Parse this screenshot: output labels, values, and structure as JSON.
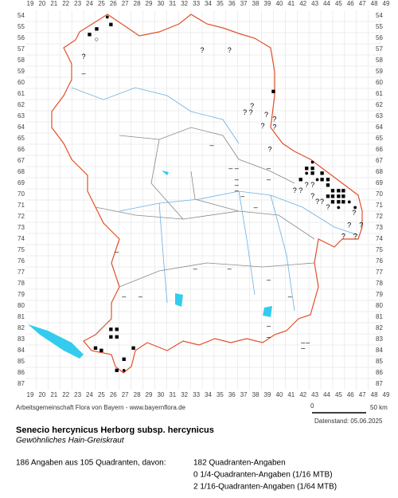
{
  "map": {
    "columns": [
      19,
      20,
      21,
      22,
      23,
      24,
      25,
      26,
      27,
      28,
      29,
      30,
      31,
      32,
      33,
      34,
      35,
      36,
      37,
      38,
      39,
      40,
      41,
      42,
      43,
      44,
      45,
      46,
      47,
      48,
      49
    ],
    "rows": [
      54,
      55,
      56,
      57,
      58,
      59,
      60,
      61,
      62,
      63,
      64,
      65,
      66,
      67,
      68,
      69,
      70,
      71,
      72,
      73,
      74,
      75,
      76,
      77,
      78,
      79,
      80,
      81,
      82,
      83,
      84,
      85,
      86,
      87
    ],
    "markers": [
      {
        "c": 25.5,
        "r": 54.1,
        "s": "●"
      },
      {
        "c": 25.8,
        "r": 54.8,
        "s": "■"
      },
      {
        "c": 24.6,
        "r": 55.2,
        "s": "■"
      },
      {
        "c": 24.0,
        "r": 55.7,
        "s": "■"
      },
      {
        "c": 24.6,
        "r": 56.1,
        "s": "○"
      },
      {
        "c": 23.5,
        "r": 57.7,
        "s": "?"
      },
      {
        "c": 23.5,
        "r": 59.2,
        "s": "–"
      },
      {
        "c": 39.5,
        "r": 60.8,
        "s": "■"
      },
      {
        "c": 33.5,
        "r": 57.1,
        "s": "?"
      },
      {
        "c": 35.8,
        "r": 57.1,
        "s": "?"
      },
      {
        "c": 37.7,
        "r": 62.1,
        "s": "?"
      },
      {
        "c": 37.1,
        "r": 62.7,
        "s": "?"
      },
      {
        "c": 37.6,
        "r": 62.7,
        "s": "?"
      },
      {
        "c": 38.9,
        "r": 62.9,
        "s": "?"
      },
      {
        "c": 39.6,
        "r": 63.3,
        "s": "?"
      },
      {
        "c": 38.6,
        "r": 63.9,
        "s": "?"
      },
      {
        "c": 39.6,
        "r": 64.0,
        "s": "?"
      },
      {
        "c": 39.2,
        "r": 66.0,
        "s": "?"
      },
      {
        "c": 34.3,
        "r": 65.6,
        "s": "–"
      },
      {
        "c": 42.8,
        "r": 67.1,
        "s": "●"
      },
      {
        "c": 42.3,
        "r": 67.7,
        "s": "■"
      },
      {
        "c": 42.8,
        "r": 67.7,
        "s": "■"
      },
      {
        "c": 42.3,
        "r": 68.1,
        "s": "●"
      },
      {
        "c": 42.8,
        "r": 68.1,
        "s": "■"
      },
      {
        "c": 43.6,
        "r": 68.1,
        "s": "■"
      },
      {
        "c": 41.8,
        "r": 68.7,
        "s": "■"
      },
      {
        "c": 43.2,
        "r": 68.7,
        "s": "●"
      },
      {
        "c": 43.6,
        "r": 68.7,
        "s": "■"
      },
      {
        "c": 44.1,
        "r": 68.7,
        "s": "■"
      },
      {
        "c": 44.1,
        "r": 69.2,
        "s": "■"
      },
      {
        "c": 44.5,
        "r": 69.7,
        "s": "■"
      },
      {
        "c": 45.0,
        "r": 69.7,
        "s": "■"
      },
      {
        "c": 45.4,
        "r": 69.7,
        "s": "■"
      },
      {
        "c": 44.1,
        "r": 70.2,
        "s": "■"
      },
      {
        "c": 44.5,
        "r": 70.2,
        "s": "■"
      },
      {
        "c": 45.0,
        "r": 70.2,
        "s": "■"
      },
      {
        "c": 45.4,
        "r": 70.2,
        "s": "■"
      },
      {
        "c": 44.5,
        "r": 70.7,
        "s": "■"
      },
      {
        "c": 45.0,
        "r": 70.7,
        "s": "■"
      },
      {
        "c": 45.4,
        "r": 70.7,
        "s": "■"
      },
      {
        "c": 45.9,
        "r": 70.7,
        "s": "●"
      },
      {
        "c": 45.0,
        "r": 71.2,
        "s": "●"
      },
      {
        "c": 46.4,
        "r": 71.2,
        "s": "●"
      },
      {
        "c": 41.3,
        "r": 69.7,
        "s": "?"
      },
      {
        "c": 41.8,
        "r": 69.7,
        "s": "?"
      },
      {
        "c": 42.3,
        "r": 69.2,
        "s": "?"
      },
      {
        "c": 42.8,
        "r": 69.2,
        "s": "?"
      },
      {
        "c": 42.8,
        "r": 70.2,
        "s": "?"
      },
      {
        "c": 43.2,
        "r": 70.7,
        "s": "?"
      },
      {
        "c": 43.6,
        "r": 70.7,
        "s": "?"
      },
      {
        "c": 44.1,
        "r": 71.2,
        "s": "?"
      },
      {
        "c": 46.3,
        "r": 71.7,
        "s": "?"
      },
      {
        "c": 45.9,
        "r": 72.8,
        "s": "?"
      },
      {
        "c": 46.9,
        "r": 72.8,
        "s": "?"
      },
      {
        "c": 46.4,
        "r": 73.8,
        "s": "?"
      },
      {
        "c": 45.4,
        "r": 73.8,
        "s": "?"
      },
      {
        "c": 35.9,
        "r": 67.7,
        "s": "–"
      },
      {
        "c": 36.4,
        "r": 67.7,
        "s": "–"
      },
      {
        "c": 39.1,
        "r": 67.7,
        "s": "–"
      },
      {
        "c": 39.1,
        "r": 68.7,
        "s": "–"
      },
      {
        "c": 36.4,
        "r": 68.7,
        "s": "–"
      },
      {
        "c": 36.4,
        "r": 69.2,
        "s": "–"
      },
      {
        "c": 36.4,
        "r": 69.7,
        "s": "–"
      },
      {
        "c": 36.9,
        "r": 70.2,
        "s": "–"
      },
      {
        "c": 38.0,
        "r": 71.2,
        "s": "–"
      },
      {
        "c": 26.3,
        "r": 75.2,
        "s": "–"
      },
      {
        "c": 26.9,
        "r": 79.2,
        "s": "–"
      },
      {
        "c": 28.3,
        "r": 79.2,
        "s": "–"
      },
      {
        "c": 32.9,
        "r": 76.7,
        "s": "–"
      },
      {
        "c": 35.8,
        "r": 76.7,
        "s": "–"
      },
      {
        "c": 39.1,
        "r": 77.7,
        "s": "–"
      },
      {
        "c": 40.9,
        "r": 79.2,
        "s": "–"
      },
      {
        "c": 39.1,
        "r": 81.8,
        "s": "–"
      },
      {
        "c": 39.1,
        "r": 82.8,
        "s": "–"
      },
      {
        "c": 42.0,
        "r": 83.3,
        "s": "–"
      },
      {
        "c": 42.0,
        "r": 83.8,
        "s": "–"
      },
      {
        "c": 42.4,
        "r": 83.3,
        "s": "–"
      },
      {
        "c": 25.8,
        "r": 82.1,
        "s": "■"
      },
      {
        "c": 26.3,
        "r": 82.1,
        "s": "■"
      },
      {
        "c": 25.8,
        "r": 82.8,
        "s": "■"
      },
      {
        "c": 26.3,
        "r": 82.8,
        "s": "■"
      },
      {
        "c": 24.5,
        "r": 83.8,
        "s": "■"
      },
      {
        "c": 25.0,
        "r": 84.0,
        "s": "■"
      },
      {
        "c": 26.9,
        "r": 84.8,
        "s": "■"
      },
      {
        "c": 27.7,
        "r": 83.8,
        "s": "■"
      },
      {
        "c": 26.3,
        "r": 85.8,
        "s": "■"
      },
      {
        "c": 26.9,
        "r": 85.8,
        "s": "●"
      }
    ]
  },
  "scale": {
    "start": "0",
    "end": "50 km"
  },
  "credit": "Arbeitsgemeinschaft Flora von Bayern - www.bayernflora.de",
  "date": "Datenstand: 05.06.2025",
  "title": "Senecio hercynicus Herborg subsp. hercynicus",
  "subtitle": "Gewöhnliches Hain-Greiskraut",
  "stats": {
    "summary": "186 Angaben aus 105 Quadranten, davon:",
    "lines": [
      "182 Quadranten-Angaben",
      "0 1/4-Quadranten-Angaben (1/16 MTB)",
      "2 1/16-Quadranten-Angaben (1/64 MTB)"
    ]
  }
}
